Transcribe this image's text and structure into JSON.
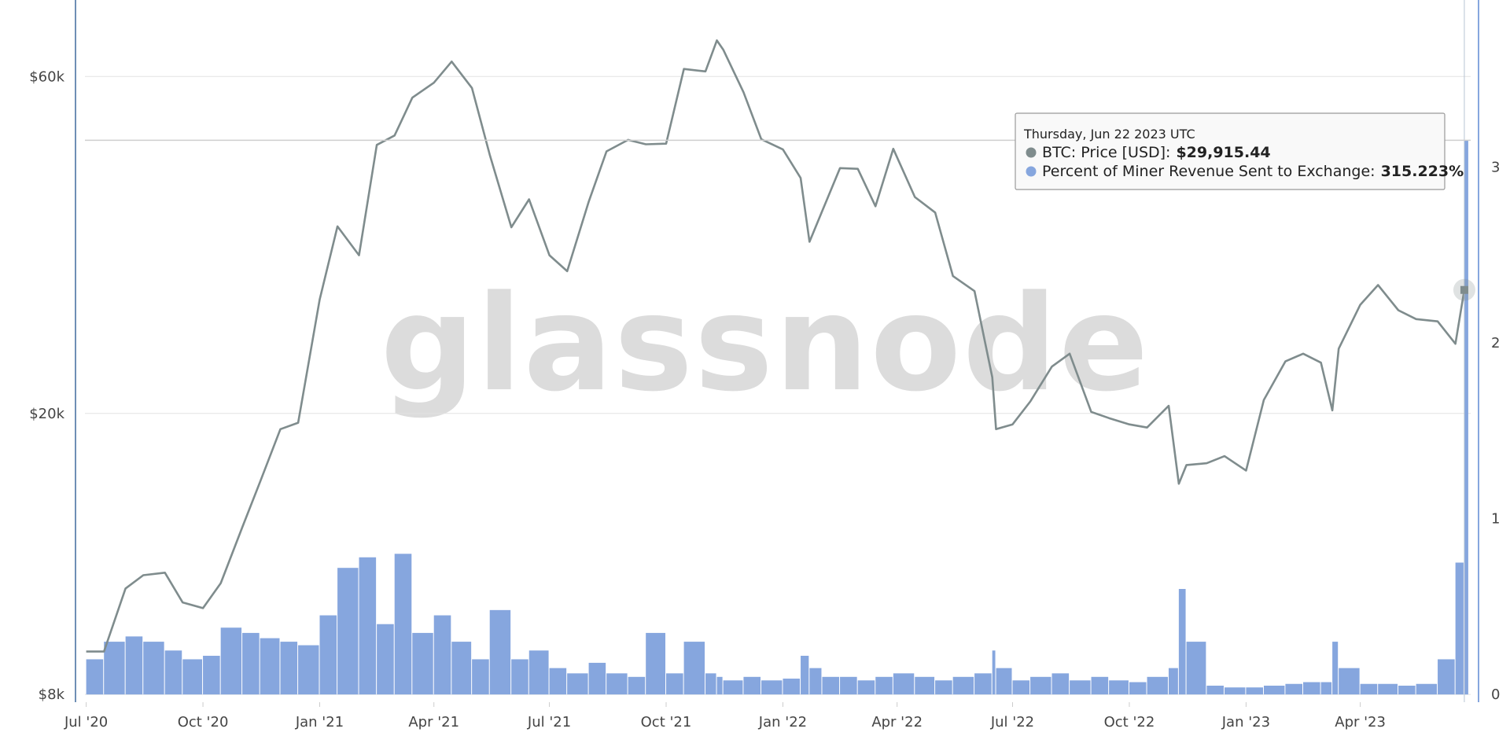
{
  "chart_data": {
    "type": "combo",
    "watermark": "glassnode",
    "x": [
      "2020-07-01",
      "2020-07-15",
      "2020-08-01",
      "2020-08-15",
      "2020-09-01",
      "2020-09-15",
      "2020-10-01",
      "2020-10-15",
      "2020-11-01",
      "2020-11-15",
      "2020-12-01",
      "2020-12-15",
      "2021-01-01",
      "2021-01-15",
      "2021-02-01",
      "2021-02-15",
      "2021-03-01",
      "2021-03-15",
      "2021-04-01",
      "2021-04-15",
      "2021-05-01",
      "2021-05-15",
      "2021-06-01",
      "2021-06-15",
      "2021-07-01",
      "2021-07-15",
      "2021-08-01",
      "2021-08-15",
      "2021-09-01",
      "2021-09-15",
      "2021-10-01",
      "2021-10-15",
      "2021-11-01",
      "2021-11-10",
      "2021-11-15",
      "2021-12-01",
      "2021-12-15",
      "2022-01-01",
      "2022-01-15",
      "2022-01-22",
      "2022-02-01",
      "2022-02-15",
      "2022-03-01",
      "2022-03-15",
      "2022-03-29",
      "2022-04-15",
      "2022-05-01",
      "2022-05-15",
      "2022-06-01",
      "2022-06-15",
      "2022-06-18",
      "2022-07-01",
      "2022-07-15",
      "2022-08-01",
      "2022-08-15",
      "2022-09-01",
      "2022-09-15",
      "2022-10-01",
      "2022-10-15",
      "2022-11-01",
      "2022-11-09",
      "2022-11-15",
      "2022-12-01",
      "2022-12-15",
      "2023-01-01",
      "2023-01-15",
      "2023-02-01",
      "2023-02-15",
      "2023-03-01",
      "2023-03-10",
      "2023-03-15",
      "2023-04-01",
      "2023-04-15",
      "2023-05-01",
      "2023-05-15",
      "2023-06-01",
      "2023-06-15",
      "2023-06-22"
    ],
    "xlim": [
      "2020-06-30",
      "2023-06-27"
    ],
    "xticks": [
      {
        "value": "2020-07-01",
        "label": "Jul '20"
      },
      {
        "value": "2020-10-01",
        "label": "Oct '20"
      },
      {
        "value": "2021-01-01",
        "label": "Jan '21"
      },
      {
        "value": "2021-04-01",
        "label": "Apr '21"
      },
      {
        "value": "2021-07-01",
        "label": "Jul '21"
      },
      {
        "value": "2021-10-01",
        "label": "Oct '21"
      },
      {
        "value": "2022-01-01",
        "label": "Jan '22"
      },
      {
        "value": "2022-04-01",
        "label": "Apr '22"
      },
      {
        "value": "2022-07-01",
        "label": "Jul '22"
      },
      {
        "value": "2022-10-01",
        "label": "Oct '22"
      },
      {
        "value": "2023-01-01",
        "label": "Jan '23"
      },
      {
        "value": "2023-04-01",
        "label": "Apr '23"
      }
    ],
    "ylim": [
      7800,
      77000
    ],
    "log_y": true,
    "yticks": [
      {
        "value": 8000,
        "label": "$8k"
      },
      {
        "value": 20000,
        "label": "$20k"
      },
      {
        "value": 60000,
        "label": "$60k"
      }
    ],
    "y2lim": [
      -0.044,
      3.95
    ],
    "y2ticks": [
      0,
      1,
      2,
      3
    ],
    "grid": true,
    "series": [
      {
        "type": "bar",
        "axis": "y2",
        "color": "#86a6de",
        "values": [
          0.2,
          0.3,
          0.33,
          0.3,
          0.25,
          0.2,
          0.22,
          0.38,
          0.35,
          0.32,
          0.3,
          0.28,
          0.45,
          0.72,
          0.78,
          0.4,
          0.8,
          0.35,
          0.45,
          0.3,
          0.2,
          0.48,
          0.2,
          0.25,
          0.15,
          0.12,
          0.18,
          0.12,
          0.1,
          0.35,
          0.12,
          0.3,
          0.12,
          0.1,
          0.08,
          0.1,
          0.08,
          0.09,
          0.22,
          0.15,
          0.1,
          0.1,
          0.08,
          0.1,
          0.12,
          0.1,
          0.08,
          0.1,
          0.12,
          0.25,
          0.15,
          0.08,
          0.1,
          0.12,
          0.08,
          0.1,
          0.08,
          0.07,
          0.1,
          0.15,
          0.6,
          0.3,
          0.05,
          0.04,
          0.04,
          0.05,
          0.06,
          0.07,
          0.07,
          0.3,
          0.15,
          0.06,
          0.06,
          0.05,
          0.06,
          0.2,
          0.75,
          3.15223
        ]
      },
      {
        "type": "line",
        "axis": "y",
        "color": "#7f8c8d",
        "values": [
          9200,
          9200,
          11300,
          11800,
          11900,
          10800,
          10600,
          11500,
          13800,
          16000,
          19000,
          19400,
          29000,
          36800,
          33500,
          48000,
          49500,
          56000,
          58800,
          63000,
          57800,
          46500,
          36700,
          40200,
          33500,
          31800,
          39900,
          47000,
          48800,
          48100,
          48200,
          61500,
          61000,
          67500,
          65500,
          57000,
          48900,
          47300,
          43100,
          35000,
          38700,
          44500,
          44400,
          39300,
          47400,
          40500,
          38500,
          31300,
          29800,
          22500,
          19000,
          19300,
          20800,
          23300,
          24300,
          20100,
          19700,
          19300,
          19100,
          20500,
          15900,
          16900,
          17000,
          17400,
          16600,
          20900,
          23700,
          24300,
          23600,
          20200,
          24700,
          28500,
          30400,
          28000,
          27200,
          27000,
          25100,
          29915.44
        ]
      }
    ],
    "tooltip": {
      "date": "Thursday, Jun 22 2023 UTC",
      "items": [
        {
          "label": "BTC: Price [USD]:",
          "value_label": "$29,915.44"
        },
        {
          "label": "Percent of Miner Revenue Sent to Exchange:",
          "value_label": "315.223%"
        }
      ]
    }
  }
}
